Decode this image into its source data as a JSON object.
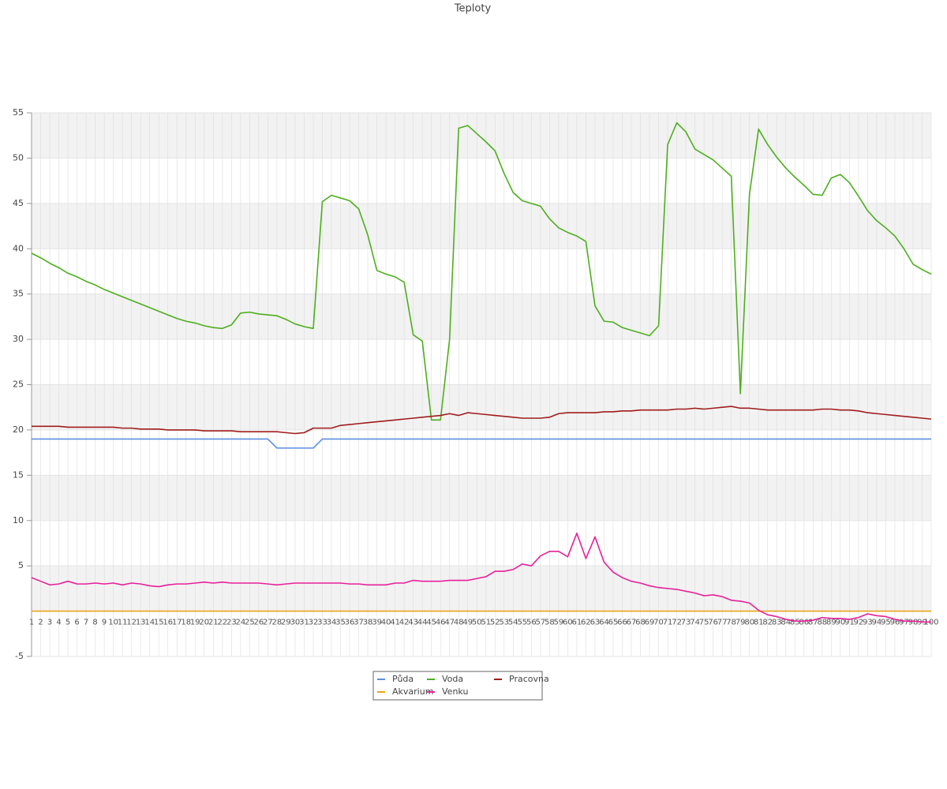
{
  "chart_data": {
    "type": "line",
    "title": "Teploty",
    "categories": [
      "1",
      "2",
      "3",
      "4",
      "5",
      "6",
      "7",
      "8",
      "9",
      "10",
      "11",
      "12",
      "13",
      "14",
      "15",
      "16",
      "17",
      "18",
      "19",
      "20",
      "21",
      "22",
      "23",
      "24",
      "25",
      "26",
      "27",
      "28",
      "29",
      "30",
      "31",
      "32",
      "33",
      "34",
      "35",
      "36",
      "37",
      "38",
      "39",
      "40",
      "41",
      "42",
      "43",
      "44",
      "45",
      "46",
      "47",
      "48",
      "49",
      "50",
      "51",
      "52",
      "53",
      "54",
      "55",
      "56",
      "57",
      "58",
      "59",
      "60",
      "61",
      "62",
      "63",
      "64",
      "65",
      "66",
      "67",
      "68",
      "69",
      "70",
      "71",
      "72",
      "73",
      "74",
      "75",
      "76",
      "77",
      "78",
      "79",
      "80",
      "81",
      "82",
      "83",
      "84",
      "85",
      "86",
      "87",
      "88",
      "89",
      "90",
      "91",
      "92",
      "93",
      "94",
      "95",
      "96",
      "97",
      "98",
      "99",
      "100"
    ],
    "series": [
      {
        "name": "Půda",
        "color": "#5b8fe0",
        "values": [
          19,
          19,
          19,
          19,
          19,
          19,
          19,
          19,
          19,
          19,
          19,
          19,
          19,
          19,
          19,
          19,
          19,
          19,
          19,
          19,
          19,
          19,
          19,
          19,
          19,
          19,
          19,
          18,
          18,
          18,
          18,
          18,
          19,
          19,
          19,
          19,
          19,
          19,
          19,
          19,
          19,
          19,
          19,
          19,
          19,
          19,
          19,
          19,
          19,
          19,
          19,
          19,
          19,
          19,
          19,
          19,
          19,
          19,
          19,
          19,
          19,
          19,
          19,
          19,
          19,
          19,
          19,
          19,
          19,
          19,
          19,
          19,
          19,
          19,
          19,
          19,
          19,
          19,
          19,
          19,
          19,
          19,
          19,
          19,
          19,
          19,
          19,
          19,
          19,
          19,
          19,
          19,
          19,
          19,
          19,
          19,
          19,
          19,
          19,
          19
        ]
      },
      {
        "name": "Voda",
        "color": "#4caf1c",
        "values": [
          39.5,
          39.0,
          38.4,
          37.9,
          37.3,
          36.9,
          36.4,
          36.0,
          35.5,
          35.1,
          34.7,
          34.3,
          33.9,
          33.5,
          33.1,
          32.7,
          32.3,
          32.0,
          31.8,
          31.5,
          31.3,
          31.2,
          31.6,
          32.9,
          33.0,
          32.8,
          32.7,
          32.6,
          32.2,
          31.7,
          31.4,
          31.2,
          45.2,
          45.9,
          45.6,
          45.3,
          44.4,
          41.5,
          37.6,
          37.2,
          36.9,
          36.3,
          30.5,
          29.8,
          21.1,
          21.1,
          30,
          53.3,
          53.6,
          52.7,
          51.8,
          50.8,
          48.3,
          46.2,
          45.3,
          45.0,
          44.7,
          43.3,
          42.3,
          41.8,
          41.4,
          40.8,
          33.7,
          32,
          31.9,
          31.3,
          31,
          30.7,
          30.4,
          31.5,
          51.5,
          53.9,
          52.9,
          51,
          50.4,
          49.8,
          48.9,
          48,
          24,
          46,
          53.2,
          51.5,
          50.1,
          48.9,
          47.9,
          47,
          46,
          45.9,
          47.8,
          48.2,
          47.3,
          45.8,
          44.2,
          43.1,
          42.3,
          41.4,
          40,
          38.3,
          37.7,
          37.2
        ]
      },
      {
        "name": "Pracovna",
        "color": "#a01c1c",
        "values": [
          20.4,
          20.4,
          20.4,
          20.4,
          20.3,
          20.3,
          20.3,
          20.3,
          20.3,
          20.3,
          20.2,
          20.2,
          20.1,
          20.1,
          20.1,
          20.0,
          20.0,
          20.0,
          20.0,
          19.9,
          19.9,
          19.9,
          19.9,
          19.8,
          19.8,
          19.8,
          19.8,
          19.8,
          19.7,
          19.6,
          19.7,
          20.2,
          20.2,
          20.2,
          20.5,
          20.6,
          20.7,
          20.8,
          20.9,
          21.0,
          21.1,
          21.2,
          21.3,
          21.4,
          21.5,
          21.6,
          21.8,
          21.6,
          21.9,
          21.8,
          21.7,
          21.6,
          21.5,
          21.4,
          21.3,
          21.3,
          21.3,
          21.4,
          21.8,
          21.9,
          21.9,
          21.9,
          21.9,
          22.0,
          22.0,
          22.1,
          22.1,
          22.2,
          22.2,
          22.2,
          22.2,
          22.3,
          22.3,
          22.4,
          22.3,
          22.4,
          22.5,
          22.6,
          22.4,
          22.4,
          22.3,
          22.2,
          22.2,
          22.2,
          22.2,
          22.2,
          22.2,
          22.3,
          22.3,
          22.2,
          22.2,
          22.1,
          21.9,
          21.8,
          21.7,
          21.6,
          21.5,
          21.4,
          21.3,
          21.2
        ]
      },
      {
        "name": "Akvarium",
        "color": "#e8a317",
        "values": [
          0,
          0,
          0,
          0,
          0,
          0,
          0,
          0,
          0,
          0,
          0,
          0,
          0,
          0,
          0,
          0,
          0,
          0,
          0,
          0,
          0,
          0,
          0,
          0,
          0,
          0,
          0,
          0,
          0,
          0,
          0,
          0,
          0,
          0,
          0,
          0,
          0,
          0,
          0,
          0,
          0,
          0,
          0,
          0,
          0,
          0,
          0,
          0,
          0,
          0,
          0,
          0,
          0,
          0,
          0,
          0,
          0,
          0,
          0,
          0,
          0,
          0,
          0,
          0,
          0,
          0,
          0,
          0,
          0,
          0,
          0,
          0,
          0,
          0,
          0,
          0,
          0,
          0,
          0,
          0,
          0,
          0,
          0,
          0,
          0,
          0,
          0,
          0,
          0,
          0,
          0,
          0,
          0,
          0,
          0,
          0,
          0,
          0,
          0,
          0
        ]
      },
      {
        "name": "Venku",
        "color": "#e8209a",
        "values": [
          3.7,
          3.3,
          2.9,
          3.0,
          3.3,
          3.0,
          3.0,
          3.1,
          3.0,
          3.1,
          2.9,
          3.1,
          3.0,
          2.8,
          2.7,
          2.9,
          3.0,
          3.0,
          3.1,
          3.2,
          3.1,
          3.2,
          3.1,
          3.1,
          3.1,
          3.1,
          3.0,
          2.9,
          3.0,
          3.1,
          3.1,
          3.1,
          3.1,
          3.1,
          3.1,
          3.0,
          3.0,
          2.9,
          2.9,
          2.9,
          3.1,
          3.1,
          3.4,
          3.3,
          3.3,
          3.3,
          3.4,
          3.4,
          3.4,
          3.6,
          3.8,
          4.4,
          4.4,
          4.6,
          5.2,
          5.0,
          6.1,
          6.6,
          6.6,
          6.0,
          8.6,
          5.8,
          8.2,
          5.4,
          4.3,
          3.7,
          3.3,
          3.1,
          2.8,
          2.6,
          2.5,
          2.4,
          2.2,
          2.0,
          1.7,
          1.8,
          1.6,
          1.2,
          1.1,
          0.9,
          0.1,
          -0.4,
          -0.6,
          -0.9,
          -1.1,
          -1.1,
          -1.0,
          -0.7,
          -0.8,
          -0.8,
          -0.9,
          -0.7,
          -0.3,
          -0.5,
          -0.6,
          -0.9,
          -1.1,
          -1.1,
          -1.2,
          -1.2
        ]
      }
    ],
    "ylim": [
      -5,
      55
    ],
    "yticks": [
      -5,
      5,
      10,
      15,
      20,
      25,
      30,
      35,
      40,
      45,
      50,
      55
    ],
    "grid": true,
    "legend": "bottom"
  }
}
